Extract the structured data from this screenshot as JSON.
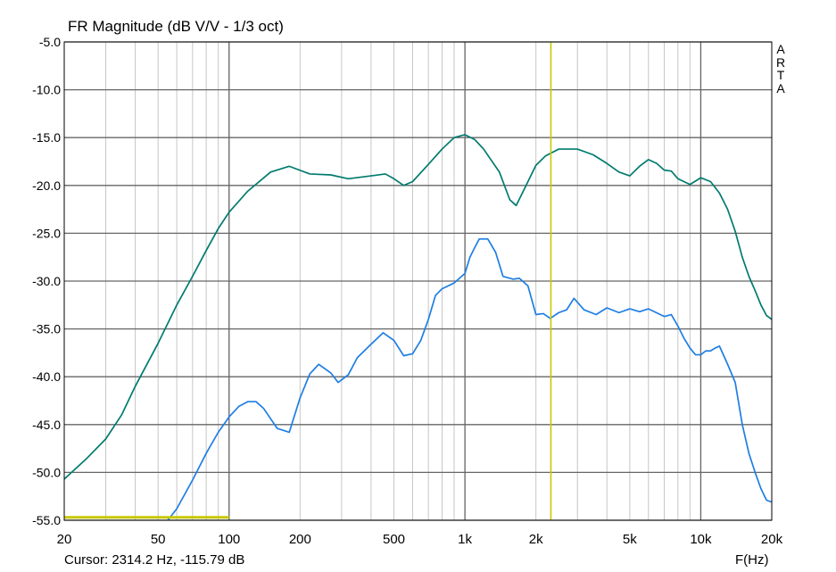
{
  "header": {
    "title": "FR Magnitude (dB V/V - 1/3 oct)",
    "side_tag": [
      "A",
      "R",
      "T",
      "A"
    ]
  },
  "footer": {
    "cursor_label": "Cursor: 2314.2 Hz, -115.79 dB",
    "x_unit": "F(Hz)"
  },
  "colors": {
    "series_upper": "#007b6e",
    "series_lower": "#1e7ee4",
    "cursor": "#c8c800",
    "grid_minor": "#c6c6c6",
    "grid_major": "#666666"
  },
  "chart_data": {
    "type": "line",
    "title": "FR Magnitude (dB V/V - 1/3 oct)",
    "xlabel": "F(Hz)",
    "ylabel": "",
    "xscale": "log",
    "xlim": [
      20,
      20000
    ],
    "ylim": [
      -55,
      -5
    ],
    "grid": true,
    "x_ticks": [
      {
        "v": 20,
        "label": "20"
      },
      {
        "v": 50,
        "label": "50"
      },
      {
        "v": 100,
        "label": "100"
      },
      {
        "v": 200,
        "label": "200"
      },
      {
        "v": 500,
        "label": "500"
      },
      {
        "v": 1000,
        "label": "1k"
      },
      {
        "v": 2000,
        "label": "2k"
      },
      {
        "v": 5000,
        "label": "5k"
      },
      {
        "v": 10000,
        "label": "10k"
      },
      {
        "v": 20000,
        "label": "20k"
      }
    ],
    "y_ticks": [
      {
        "v": -5,
        "label": "-5.0"
      },
      {
        "v": -10,
        "label": "-10.0"
      },
      {
        "v": -15,
        "label": "-15.0"
      },
      {
        "v": -20,
        "label": "-20.0"
      },
      {
        "v": -25,
        "label": "-25.0"
      },
      {
        "v": -30,
        "label": "-30.0"
      },
      {
        "v": -35,
        "label": "-35.0"
      },
      {
        "v": -40,
        "label": "-40.0"
      },
      {
        "v": -45,
        "label": "-45.0"
      },
      {
        "v": -50,
        "label": "-50.0"
      },
      {
        "v": -55,
        "label": "-55.0"
      }
    ],
    "cursor_freq": 2314.2,
    "series": [
      {
        "color": "#007b6e",
        "points": [
          [
            20,
            -50.7
          ],
          [
            25,
            -48.5
          ],
          [
            30,
            -46.5
          ],
          [
            35,
            -44.0
          ],
          [
            40,
            -41.0
          ],
          [
            50,
            -36.5
          ],
          [
            60,
            -32.5
          ],
          [
            70,
            -29.5
          ],
          [
            80,
            -26.8
          ],
          [
            90,
            -24.5
          ],
          [
            100,
            -22.8
          ],
          [
            120,
            -20.6
          ],
          [
            150,
            -18.6
          ],
          [
            180,
            -18.0
          ],
          [
            220,
            -18.8
          ],
          [
            270,
            -18.9
          ],
          [
            320,
            -19.3
          ],
          [
            400,
            -19.0
          ],
          [
            460,
            -18.8
          ],
          [
            500,
            -19.3
          ],
          [
            550,
            -20.0
          ],
          [
            600,
            -19.6
          ],
          [
            700,
            -17.8
          ],
          [
            800,
            -16.2
          ],
          [
            900,
            -15.0
          ],
          [
            1000,
            -14.7
          ],
          [
            1100,
            -15.2
          ],
          [
            1200,
            -16.2
          ],
          [
            1400,
            -18.6
          ],
          [
            1550,
            -21.5
          ],
          [
            1650,
            -22.1
          ],
          [
            1800,
            -20.2
          ],
          [
            2000,
            -17.9
          ],
          [
            2200,
            -16.9
          ],
          [
            2500,
            -16.2
          ],
          [
            3000,
            -16.2
          ],
          [
            3500,
            -16.8
          ],
          [
            4000,
            -17.7
          ],
          [
            4500,
            -18.6
          ],
          [
            5000,
            -19.0
          ],
          [
            5500,
            -18.0
          ],
          [
            6000,
            -17.3
          ],
          [
            6500,
            -17.7
          ],
          [
            7000,
            -18.4
          ],
          [
            7500,
            -18.5
          ],
          [
            8000,
            -19.3
          ],
          [
            9000,
            -19.9
          ],
          [
            10000,
            -19.2
          ],
          [
            11000,
            -19.6
          ],
          [
            12000,
            -20.8
          ],
          [
            13000,
            -22.5
          ],
          [
            14000,
            -24.8
          ],
          [
            15000,
            -27.5
          ],
          [
            16000,
            -29.5
          ],
          [
            17000,
            -31.0
          ],
          [
            18000,
            -32.5
          ],
          [
            19000,
            -33.6
          ],
          [
            20000,
            -34.0
          ]
        ]
      },
      {
        "color": "#1e7ee4",
        "points": [
          [
            55,
            -55.0
          ],
          [
            60,
            -53.8
          ],
          [
            70,
            -50.8
          ],
          [
            80,
            -48.0
          ],
          [
            90,
            -45.8
          ],
          [
            100,
            -44.2
          ],
          [
            110,
            -43.1
          ],
          [
            120,
            -42.6
          ],
          [
            130,
            -42.6
          ],
          [
            140,
            -43.3
          ],
          [
            160,
            -45.4
          ],
          [
            180,
            -45.8
          ],
          [
            200,
            -42.2
          ],
          [
            220,
            -39.7
          ],
          [
            240,
            -38.7
          ],
          [
            270,
            -39.6
          ],
          [
            290,
            -40.6
          ],
          [
            320,
            -39.8
          ],
          [
            350,
            -38.0
          ],
          [
            400,
            -36.6
          ],
          [
            450,
            -35.4
          ],
          [
            500,
            -36.2
          ],
          [
            550,
            -37.8
          ],
          [
            600,
            -37.6
          ],
          [
            650,
            -36.2
          ],
          [
            700,
            -34.0
          ],
          [
            750,
            -31.5
          ],
          [
            800,
            -30.8
          ],
          [
            900,
            -30.2
          ],
          [
            1000,
            -29.2
          ],
          [
            1050,
            -27.5
          ],
          [
            1100,
            -26.5
          ],
          [
            1150,
            -25.6
          ],
          [
            1250,
            -25.6
          ],
          [
            1350,
            -27.0
          ],
          [
            1450,
            -29.5
          ],
          [
            1600,
            -29.8
          ],
          [
            1700,
            -29.7
          ],
          [
            1850,
            -30.5
          ],
          [
            2000,
            -33.5
          ],
          [
            2150,
            -33.4
          ],
          [
            2300,
            -33.9
          ],
          [
            2500,
            -33.3
          ],
          [
            2700,
            -33.0
          ],
          [
            2900,
            -31.8
          ],
          [
            3200,
            -33.0
          ],
          [
            3600,
            -33.5
          ],
          [
            4000,
            -32.8
          ],
          [
            4500,
            -33.3
          ],
          [
            5000,
            -32.9
          ],
          [
            5500,
            -33.2
          ],
          [
            6000,
            -32.9
          ],
          [
            7000,
            -33.7
          ],
          [
            7500,
            -33.5
          ],
          [
            8000,
            -34.7
          ],
          [
            8500,
            -36.0
          ],
          [
            9000,
            -37.0
          ],
          [
            9500,
            -37.7
          ],
          [
            10000,
            -37.7
          ],
          [
            10500,
            -37.3
          ],
          [
            11000,
            -37.3
          ],
          [
            11500,
            -37.0
          ],
          [
            12000,
            -36.8
          ],
          [
            13000,
            -38.7
          ],
          [
            14000,
            -40.6
          ],
          [
            15000,
            -45.0
          ],
          [
            16000,
            -48.0
          ],
          [
            17000,
            -50.0
          ],
          [
            18000,
            -51.7
          ],
          [
            19000,
            -52.9
          ],
          [
            20000,
            -53.1
          ]
        ]
      },
      {
        "color": "#c8c800",
        "points": [
          [
            20,
            -54.7
          ],
          [
            100,
            -54.7
          ]
        ]
      }
    ]
  }
}
